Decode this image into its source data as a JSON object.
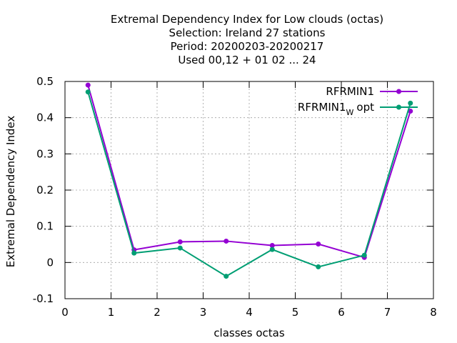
{
  "chart_data": {
    "type": "line",
    "title_lines": [
      "Extremal Dependency Index  for Low clouds (octas)",
      "Selection: Ireland     27 stations",
      "Period: 20200203-20200217",
      "Used  00,12  + 01 02 ... 24"
    ],
    "xlabel": "classes octas",
    "ylabel": "Extremal Dependency Index",
    "xlim": [
      0,
      8
    ],
    "ylim": [
      -0.1,
      0.5
    ],
    "xticks": [
      0,
      1,
      2,
      3,
      4,
      5,
      6,
      7,
      8
    ],
    "yticks": [
      -0.1,
      0,
      0.1,
      0.2,
      0.3,
      0.4,
      0.5
    ],
    "xtick_labels": [
      "0",
      "1",
      "2",
      "3",
      "4",
      "5",
      "6",
      "7",
      "8"
    ],
    "ytick_labels": [
      "-0.1",
      "0",
      "0.1",
      "0.2",
      "0.3",
      "0.4",
      "0.5"
    ],
    "grid": true,
    "legend_position": "top-right",
    "x": [
      0.5,
      1.5,
      2.5,
      3.5,
      4.5,
      5.5,
      6.5,
      7.5
    ],
    "series": [
      {
        "name": "RFRMIN1",
        "color": "#9400d3",
        "marker": "circle",
        "values": [
          0.49,
          0.035,
          0.057,
          0.059,
          0.047,
          0.051,
          0.014,
          0.418
        ]
      },
      {
        "name": "RFRMIN1",
        "name_subscript": "W",
        "name_suffix": "opt",
        "color": "#009e73",
        "marker": "circle",
        "values": [
          0.471,
          0.026,
          0.04,
          -0.038,
          0.036,
          -0.012,
          0.02,
          0.44
        ]
      }
    ]
  }
}
